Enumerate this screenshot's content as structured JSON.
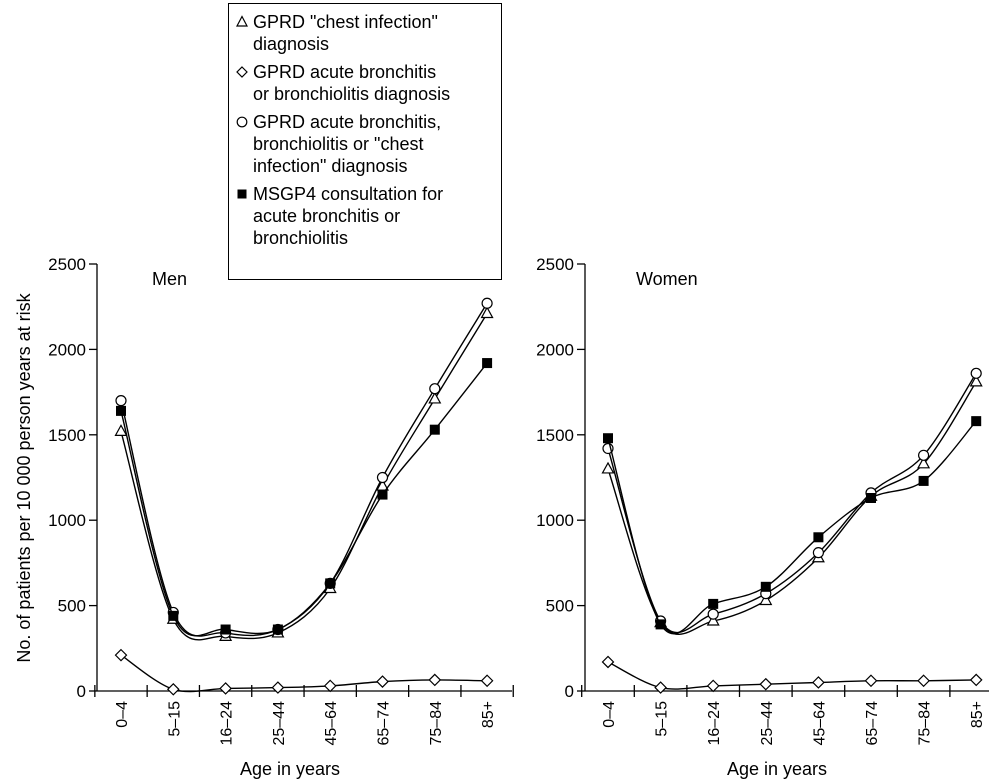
{
  "ylabel": "No. of patients per 10 000 person years at risk",
  "xlabel": "Age in years",
  "categories": [
    "0–4",
    "5–15",
    "16–24",
    "25–44",
    "45–64",
    "65–74",
    "75–84",
    "85+"
  ],
  "legend": [
    {
      "marker": "triangle",
      "label": "GPRD \"chest infection\"\ndiagnosis"
    },
    {
      "marker": "diamond",
      "label": "GPRD acute bronchitis\nor bronchiolitis diagnosis"
    },
    {
      "marker": "circle",
      "label": "GPRD acute bronchitis,\nbronchiolitis or \"chest\ninfection\" diagnosis"
    },
    {
      "marker": "square",
      "label": "MSGP4 consultation for\nacute bronchitis or\nbronchiolitis"
    }
  ],
  "colors": {
    "line": "#000000",
    "marker_fill_open": "#ffffff",
    "marker_fill_solid": "#000000"
  },
  "chart_data": [
    {
      "type": "line",
      "title": "Men",
      "xlabel": "Age in years",
      "ylabel": "No. of patients per 10 000 person years at risk",
      "categories": [
        "0–4",
        "5–15",
        "16–24",
        "25–44",
        "45–64",
        "65–74",
        "75–84",
        "85+"
      ],
      "ylim": [
        0,
        2500
      ],
      "yticks": [
        0,
        500,
        1000,
        1500,
        2000,
        2500
      ],
      "grid": false,
      "series": [
        {
          "name": "GPRD \"chest infection\" diagnosis",
          "marker": "triangle",
          "values": [
            1520,
            420,
            320,
            340,
            600,
            1200,
            1710,
            2210
          ]
        },
        {
          "name": "GPRD acute bronchitis or bronchiolitis diagnosis",
          "marker": "diamond",
          "values": [
            210,
            10,
            15,
            20,
            30,
            55,
            65,
            60
          ]
        },
        {
          "name": "GPRD acute bronchitis, bronchiolitis or \"chest infection\" diagnosis",
          "marker": "circle",
          "values": [
            1700,
            460,
            340,
            360,
            630,
            1250,
            1770,
            2270
          ]
        },
        {
          "name": "MSGP4 consultation for acute bronchitis or bronchiolitis",
          "marker": "square",
          "values": [
            1640,
            440,
            360,
            360,
            630,
            1150,
            1530,
            1920
          ]
        }
      ]
    },
    {
      "type": "line",
      "title": "Women",
      "xlabel": "Age in years",
      "ylabel": "",
      "categories": [
        "0–4",
        "5–15",
        "16–24",
        "25–44",
        "45–64",
        "65–74",
        "75–84",
        "85+"
      ],
      "ylim": [
        0,
        2500
      ],
      "yticks": [
        0,
        500,
        1000,
        1500,
        2000,
        2500
      ],
      "grid": false,
      "series": [
        {
          "name": "GPRD \"chest infection\" diagnosis",
          "marker": "triangle",
          "values": [
            1300,
            400,
            410,
            530,
            780,
            1140,
            1330,
            1810
          ]
        },
        {
          "name": "GPRD acute bronchitis or bronchiolitis diagnosis",
          "marker": "diamond",
          "values": [
            170,
            20,
            30,
            40,
            50,
            60,
            60,
            65
          ]
        },
        {
          "name": "GPRD acute bronchitis, bronchiolitis or \"chest infection\" diagnosis",
          "marker": "circle",
          "values": [
            1420,
            410,
            450,
            570,
            810,
            1160,
            1380,
            1860
          ]
        },
        {
          "name": "MSGP4 consultation for acute bronchitis or bronchiolitis",
          "marker": "square",
          "values": [
            1480,
            390,
            510,
            610,
            900,
            1130,
            1230,
            1580
          ]
        }
      ]
    }
  ]
}
